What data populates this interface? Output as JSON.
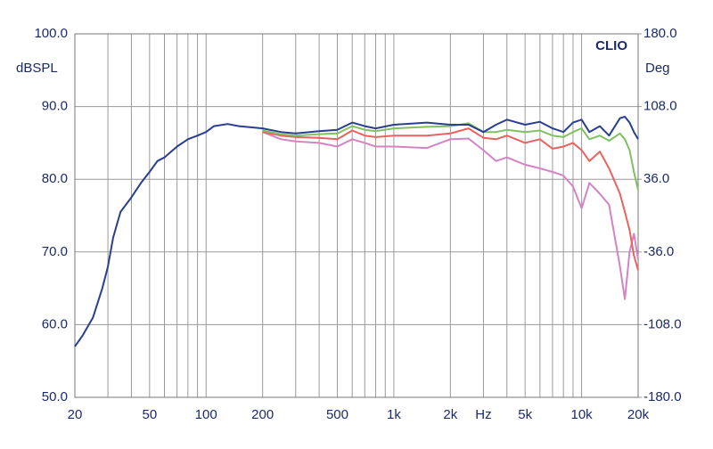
{
  "chart_data": {
    "type": "line",
    "y_label": "dBSPL",
    "y2_label": "Deg",
    "watermark": "CLIO",
    "x": [
      20,
      22,
      25,
      28,
      30,
      32,
      35,
      40,
      45,
      50,
      55,
      60,
      70,
      80,
      90,
      100,
      110,
      130,
      150,
      200,
      250,
      300,
      400,
      500,
      600,
      700,
      800,
      1000,
      1500,
      2000,
      2500,
      3000,
      3500,
      4000,
      5000,
      6000,
      7000,
      8000,
      9000,
      10000,
      11000,
      12500,
      14000,
      16000,
      17000,
      18000,
      19000,
      20000
    ],
    "series": [
      {
        "color": "#2a3f8f",
        "values": [
          57,
          58.5,
          61,
          65,
          68,
          72,
          75.5,
          77.5,
          79.5,
          81,
          82.5,
          83,
          84.5,
          85.5,
          86,
          86.5,
          87.3,
          87.6,
          87.3,
          87,
          86.5,
          86.3,
          86.6,
          86.8,
          87.8,
          87.3,
          87,
          87.5,
          87.8,
          87.5,
          87.5,
          86.5,
          87.5,
          88.2,
          87.5,
          87.9,
          87,
          86.5,
          87.8,
          88.2,
          86.5,
          87.3,
          86,
          88.4,
          88.6,
          87.8,
          86.5,
          85.5
        ]
      },
      {
        "color": "#82c065",
        "values": [
          null,
          null,
          null,
          null,
          null,
          null,
          null,
          null,
          null,
          null,
          null,
          null,
          null,
          null,
          null,
          null,
          null,
          null,
          null,
          86.7,
          86.2,
          86,
          86.2,
          86.3,
          87.3,
          86.8,
          86.6,
          87,
          87.2,
          87.3,
          87.7,
          86.5,
          86.5,
          86.8,
          86.5,
          86.7,
          86,
          85.8,
          86.5,
          87,
          85.5,
          86,
          85.3,
          86.3,
          85.5,
          84,
          81,
          78.5
        ]
      },
      {
        "color": "#e8625f",
        "values": [
          null,
          null,
          null,
          null,
          null,
          null,
          null,
          null,
          null,
          null,
          null,
          null,
          null,
          null,
          null,
          null,
          null,
          null,
          null,
          86.5,
          86,
          85.8,
          85.7,
          85.5,
          86.7,
          86,
          85.8,
          86,
          86,
          86.3,
          87,
          85.7,
          85.5,
          86,
          85,
          85.5,
          84.2,
          84.5,
          85,
          84,
          82.5,
          83.8,
          81.5,
          78,
          75.5,
          73,
          69.5,
          67.5
        ]
      },
      {
        "color": "#d484c4",
        "values": [
          null,
          null,
          null,
          null,
          null,
          null,
          null,
          null,
          null,
          null,
          null,
          null,
          null,
          null,
          null,
          null,
          null,
          null,
          null,
          86.5,
          85.5,
          85.2,
          85,
          84.5,
          85.5,
          85,
          84.5,
          84.5,
          84.3,
          85.5,
          85.6,
          84,
          82.5,
          83,
          82,
          81.5,
          81,
          80.5,
          79,
          76,
          79.5,
          78,
          76.5,
          68,
          63.5,
          70,
          72.5,
          69
        ]
      }
    ],
    "log_x": true,
    "xlim": [
      20,
      20000
    ],
    "xticks": [
      20,
      50,
      100,
      200,
      500,
      {
        "value": 1000,
        "label": "1k"
      },
      {
        "value": 2000,
        "label": "2k"
      },
      {
        "value": 3000,
        "label": "Hz"
      },
      {
        "value": 5000,
        "label": "5k"
      },
      {
        "value": 10000,
        "label": "10k"
      },
      {
        "value": 20000,
        "label": "20k"
      }
    ],
    "x_minor_ticks": [
      30,
      40,
      60,
      70,
      80,
      90,
      300,
      400,
      600,
      700,
      800,
      900,
      4000,
      6000,
      7000,
      8000,
      9000
    ],
    "ylim": [
      50,
      100
    ],
    "yticks": [
      {
        "value": 50,
        "label": "50.0"
      },
      {
        "value": 60,
        "label": "60.0"
      },
      {
        "value": 70,
        "label": "70.0"
      },
      {
        "value": 80,
        "label": "80.0"
      },
      {
        "value": 90,
        "label": "90.0"
      },
      {
        "value": 100,
        "label": "100.0"
      }
    ],
    "y2lim": [
      -180,
      180
    ],
    "y2ticks": [
      {
        "value": -180,
        "label": "-180.0"
      },
      {
        "value": -108,
        "label": "-108.0"
      },
      {
        "value": -36,
        "label": "-36.0"
      },
      {
        "value": 36,
        "label": "36.0"
      },
      {
        "value": 108,
        "label": "108.0"
      },
      {
        "value": 180,
        "label": "180.0"
      }
    ],
    "grid": true
  }
}
